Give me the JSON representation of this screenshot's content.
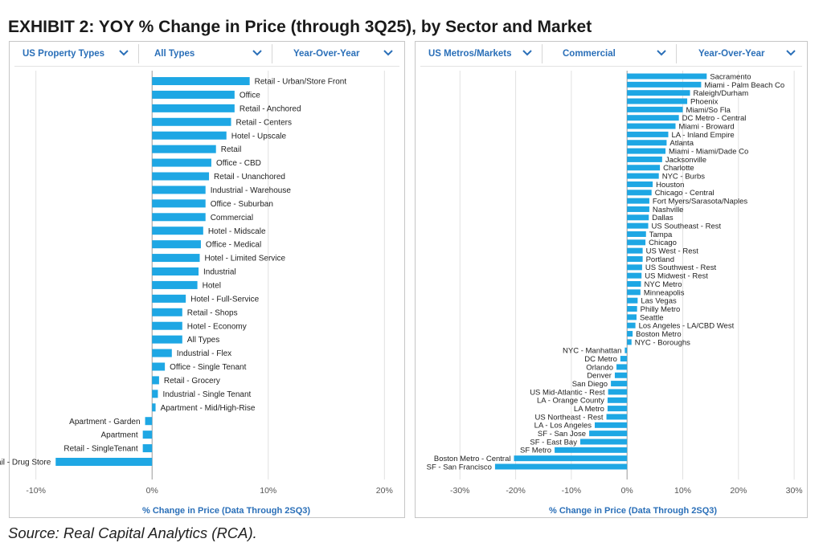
{
  "exhibit": {
    "title": "EXHIBIT 2: YOY % Change in Price (through 3Q25), by Sector and Market",
    "source": "Source: Real Capital Analytics (RCA)."
  },
  "colors": {
    "bar": "#1ea7e4",
    "filter_text": "#2a6fb8",
    "grid": "#e1e1e1",
    "zero_line": "#9a9a9a"
  },
  "left_panel": {
    "filters": [
      {
        "label": "US Property Types",
        "icon": "chevron-down-icon"
      },
      {
        "label": "All Types",
        "icon": "chevron-down-icon"
      },
      {
        "label": "Year-Over-Year",
        "icon": "chevron-down-icon"
      }
    ],
    "xlabel": "% Change in Price (Data Through 2SQ3)"
  },
  "right_panel": {
    "filters": [
      {
        "label": "US Metros/Markets",
        "icon": "chevron-down-icon"
      },
      {
        "label": "Commercial",
        "icon": "chevron-down-icon"
      },
      {
        "label": "Year-Over-Year",
        "icon": "chevron-down-icon"
      }
    ],
    "xlabel": "% Change in Price (Data Through 2SQ3)"
  },
  "chart_data": [
    {
      "type": "bar",
      "orientation": "horizontal",
      "xlabel": "% Change in Price (Data Through 2SQ3)",
      "xlim": [
        -11.5,
        21.5
      ],
      "xticks": [
        -10,
        0,
        10,
        20
      ],
      "xtick_labels": [
        "-10%",
        "0%",
        "10%",
        "20%"
      ],
      "grid": "vertical",
      "categories": [
        "Retail - Urban/Store Front",
        "Office",
        "Retail - Anchored",
        "Retail - Centers",
        "Hotel - Upscale",
        "Retail",
        "Office - CBD",
        "Retail - Unanchored",
        "Industrial - Warehouse",
        "Office - Suburban",
        "Commercial",
        "Hotel - Midscale",
        "Office - Medical",
        "Hotel - Limited Service",
        "Industrial",
        "Hotel",
        "Hotel - Full-Service",
        "Retail - Shops",
        "Hotel - Economy",
        "All Types",
        "Industrial - Flex",
        "Office - Single Tenant",
        "Retail - Grocery",
        "Industrial - Single Tenant",
        "Apartment - Mid/High-Rise",
        "Apartment - Garden",
        "Apartment",
        "Retail - SingleTenant",
        "Retail - Drug Store"
      ],
      "values": [
        8.4,
        7.1,
        7.1,
        6.8,
        6.4,
        5.5,
        5.1,
        4.9,
        4.6,
        4.6,
        4.6,
        4.4,
        4.2,
        4.1,
        4.0,
        3.9,
        2.9,
        2.6,
        2.6,
        2.6,
        1.7,
        1.1,
        0.6,
        0.5,
        0.3,
        -0.6,
        -0.8,
        -0.8,
        -8.3
      ]
    },
    {
      "type": "bar",
      "orientation": "horizontal",
      "xlabel": "% Change in Price (Data Through 2SQ3)",
      "xlim": [
        -33.5,
        32
      ],
      "xticks": [
        -30,
        -20,
        -10,
        0,
        10,
        20,
        30
      ],
      "xtick_labels": [
        "-30%",
        "-20%",
        "-10%",
        "0%",
        "10%",
        "20%",
        "30%"
      ],
      "grid": "vertical",
      "categories": [
        "Sacramento",
        "Miami - Palm Beach Co",
        "Raleigh/Durham",
        "Phoenix",
        "Miami/So Fla",
        "DC Metro - Central",
        "Miami - Broward",
        "LA - Inland Empire",
        "Atlanta",
        "Miami - Miami/Dade Co",
        "Jacksonville",
        "Charlotte",
        "NYC - Burbs",
        "Houston",
        "Chicago - Central",
        "Fort Myers/Sarasota/Naples",
        "Nashville",
        "Dallas",
        "US Southeast - Rest",
        "Tampa",
        "Chicago",
        "US West - Rest",
        "Portland",
        "US Southwest - Rest",
        "US Midwest - Rest",
        "NYC Metro",
        "Minneapolis",
        "Las Vegas",
        "Philly Metro",
        "Seattle",
        "Los Angeles - LA/CBD West",
        "Boston Metro",
        "NYC - Boroughs",
        "NYC - Manhattan",
        "DC Metro",
        "Orlando",
        "Denver",
        "San Diego",
        "US Mid-Atlantic - Rest",
        "LA - Orange County",
        "LA Metro",
        "US Northeast - Rest",
        "LA - Los Angeles",
        "SF - San Jose",
        "SF - East Bay",
        "SF Metro",
        "Boston Metro - Central",
        "SF - San Francisco"
      ],
      "values": [
        14.3,
        13.3,
        11.3,
        10.8,
        10.0,
        9.3,
        8.7,
        7.4,
        7.1,
        6.9,
        6.3,
        5.9,
        5.7,
        4.6,
        4.4,
        4.0,
        4.0,
        3.9,
        3.8,
        3.4,
        3.3,
        2.8,
        2.8,
        2.7,
        2.6,
        2.5,
        2.4,
        1.9,
        1.8,
        1.7,
        1.5,
        1.0,
        0.8,
        -0.4,
        -1.2,
        -1.9,
        -2.2,
        -2.9,
        -3.4,
        -3.5,
        -3.5,
        -3.7,
        -5.8,
        -6.8,
        -8.4,
        -13.0,
        -20.3,
        -23.7
      ]
    }
  ]
}
